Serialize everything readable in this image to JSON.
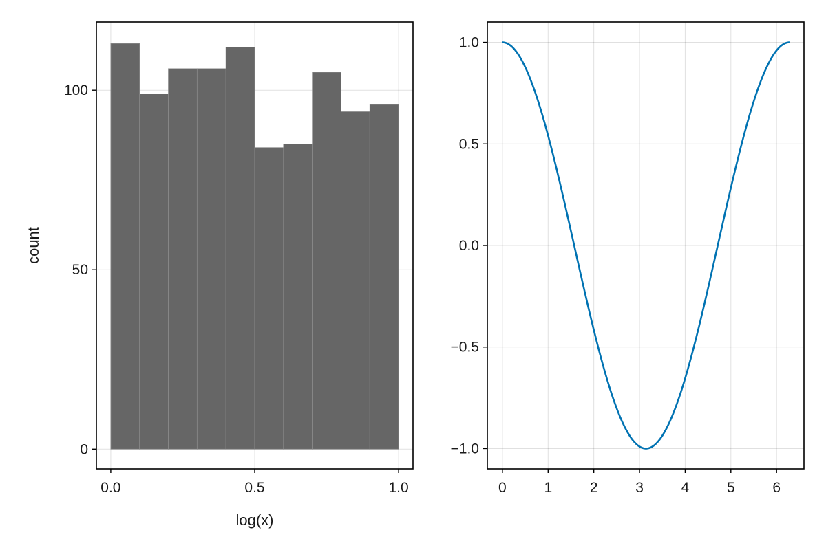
{
  "chart_data": [
    {
      "type": "bar",
      "subtype": "histogram",
      "bin_edges": [
        0.0,
        0.1,
        0.2,
        0.3,
        0.4,
        0.5,
        0.6,
        0.7,
        0.8,
        0.9,
        1.0
      ],
      "values": [
        113,
        99,
        106,
        106,
        112,
        84,
        85,
        105,
        94,
        96
      ],
      "xlabel": "log(x)",
      "ylabel": "count",
      "xlim": [
        -0.05,
        1.05
      ],
      "ylim": [
        -5.5,
        119
      ],
      "xticks": [
        0.0,
        0.5,
        1.0
      ],
      "xtick_labels": [
        "0.0",
        "0.5",
        "1.0"
      ],
      "yticks": [
        0,
        50,
        100
      ],
      "ytick_labels": [
        "0",
        "50",
        "100"
      ],
      "bar_color": "#666666",
      "grid": true
    },
    {
      "type": "line",
      "series": [
        {
          "function": "cos(x)",
          "x_range": [
            0,
            6.2832
          ],
          "color": "#0072b2"
        }
      ],
      "xlabel": "",
      "ylabel": "",
      "xlim": [
        -0.33,
        6.6
      ],
      "ylim": [
        -1.1,
        1.1
      ],
      "xticks": [
        0,
        1,
        2,
        3,
        4,
        5,
        6
      ],
      "xtick_labels": [
        "0",
        "1",
        "2",
        "3",
        "4",
        "5",
        "6"
      ],
      "yticks": [
        -1.0,
        -0.5,
        0.0,
        0.5,
        1.0
      ],
      "ytick_labels": [
        "−1.0",
        "−0.5",
        "0.0",
        "0.5",
        "1.0"
      ],
      "grid": true
    }
  ]
}
